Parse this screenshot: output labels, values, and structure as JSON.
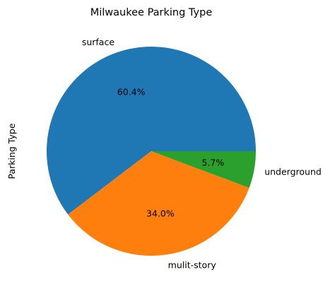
{
  "chart_data": {
    "type": "pie",
    "title": "Milwaukee Parking Type",
    "ylabel": "Parking Type",
    "categories": [
      "surface",
      "mulit-story",
      "underground"
    ],
    "values": [
      60.4,
      34.0,
      5.7
    ],
    "percent_labels": [
      "60.4%",
      "34.0%",
      "5.7%"
    ],
    "colors": [
      "#1f77b4",
      "#ff7f0e",
      "#2ca02c"
    ],
    "start_angle_deg": 0,
    "direction": "counterclockwise",
    "legend": "none"
  }
}
